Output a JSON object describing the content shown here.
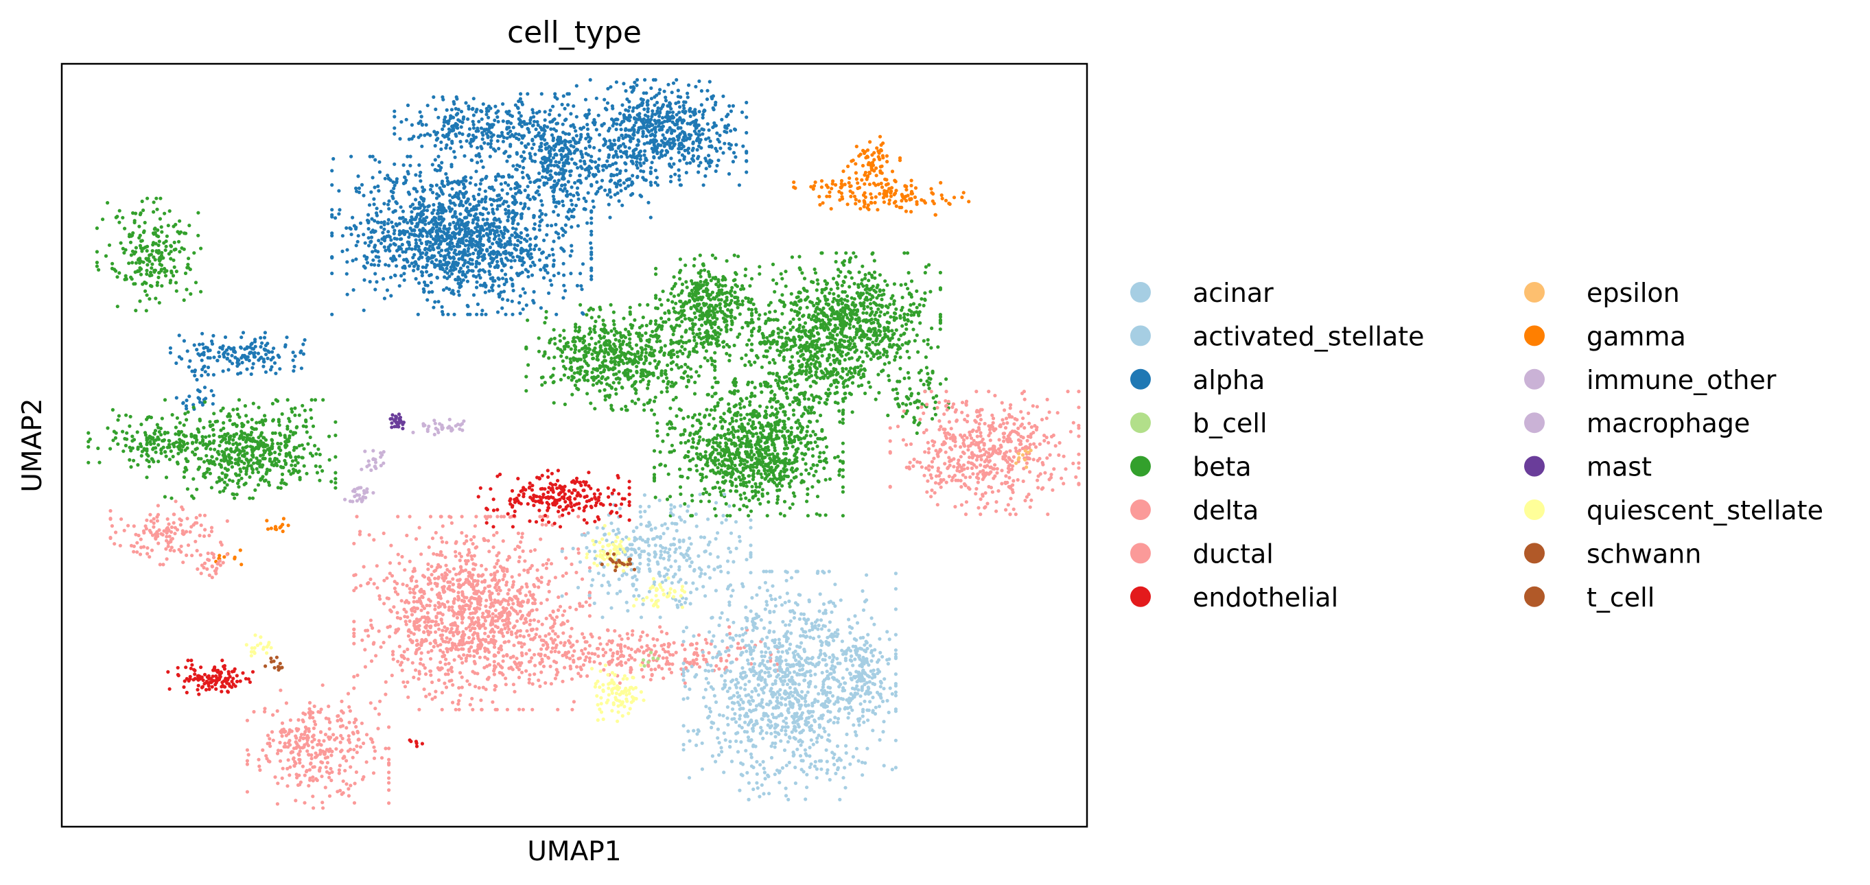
{
  "chart_data": {
    "type": "scatter",
    "title": "cell_type",
    "xlabel": "UMAP1",
    "ylabel": "UMAP2",
    "xlim": [
      0,
      100
    ],
    "ylim": [
      0,
      100
    ],
    "grid": false,
    "x_ticks": false,
    "y_ticks": false,
    "legend_position": "right, outside plot, two columns",
    "legend": [
      {
        "label": "acinar",
        "color": "#a6cee3"
      },
      {
        "label": "activated_stellate",
        "color": "#a6cee3"
      },
      {
        "label": "alpha",
        "color": "#1f78b4"
      },
      {
        "label": "b_cell",
        "color": "#b2df8a"
      },
      {
        "label": "beta",
        "color": "#33a02c"
      },
      {
        "label": "delta",
        "color": "#fb9a99"
      },
      {
        "label": "ductal",
        "color": "#fb9a99"
      },
      {
        "label": "endothelial",
        "color": "#e31a1c"
      },
      {
        "label": "epsilon",
        "color": "#fdbf6f"
      },
      {
        "label": "gamma",
        "color": "#ff7f00"
      },
      {
        "label": "immune_other",
        "color": "#cab2d6"
      },
      {
        "label": "macrophage",
        "color": "#cab2d6"
      },
      {
        "label": "mast",
        "color": "#6a3d9a"
      },
      {
        "label": "quiescent_stellate",
        "color": "#ffff99"
      },
      {
        "label": "schwann",
        "color": "#b15928"
      },
      {
        "label": "t_cell",
        "color": "#b15928"
      }
    ],
    "clusters": [
      {
        "type": "alpha",
        "cx": 39.0,
        "cy": 77.5,
        "sx": 5.5,
        "sy": 4.5,
        "n": 1400
      },
      {
        "type": "alpha",
        "cx": 58.5,
        "cy": 91.0,
        "sx": 3.6,
        "sy": 3.0,
        "n": 650
      },
      {
        "type": "alpha",
        "cx": 48.0,
        "cy": 88.0,
        "sx": 2.2,
        "sy": 3.5,
        "n": 350
      },
      {
        "type": "alpha",
        "cx": 40.5,
        "cy": 91.5,
        "sx": 3.5,
        "sy": 1.8,
        "n": 260
      },
      {
        "type": "alpha",
        "cx": 54.0,
        "cy": 84.0,
        "sx": 1.5,
        "sy": 1.8,
        "n": 60
      },
      {
        "type": "alpha",
        "cx": 17.5,
        "cy": 62.0,
        "sx": 3.0,
        "sy": 1.2,
        "n": 160
      },
      {
        "type": "alpha",
        "cx": 13.5,
        "cy": 57.0,
        "sx": 1.0,
        "sy": 2.0,
        "n": 30
      },
      {
        "type": "gamma",
        "cx": 79.0,
        "cy": 87.0,
        "sx": 1.2,
        "sy": 1.5,
        "n": 70
      },
      {
        "type": "gamma",
        "cx": 81.0,
        "cy": 82.5,
        "sx": 3.5,
        "sy": 1.0,
        "n": 120
      },
      {
        "type": "gamma",
        "cx": 76.0,
        "cy": 84.0,
        "sx": 2.0,
        "sy": 0.6,
        "n": 30
      },
      {
        "type": "gamma",
        "cx": 21.0,
        "cy": 39.0,
        "sx": 0.8,
        "sy": 0.6,
        "n": 12
      },
      {
        "type": "gamma",
        "cx": 16.5,
        "cy": 35.0,
        "sx": 0.8,
        "sy": 0.6,
        "n": 10
      },
      {
        "type": "beta",
        "cx": 8.5,
        "cy": 75.0,
        "sx": 2.2,
        "sy": 3.2,
        "n": 220
      },
      {
        "type": "beta",
        "cx": 17.5,
        "cy": 49.5,
        "sx": 4.0,
        "sy": 2.8,
        "n": 550
      },
      {
        "type": "beta",
        "cx": 9.5,
        "cy": 50.5,
        "sx": 3.0,
        "sy": 1.8,
        "n": 130
      },
      {
        "type": "beta",
        "cx": 54.5,
        "cy": 61.5,
        "sx": 4.0,
        "sy": 3.0,
        "n": 620
      },
      {
        "type": "beta",
        "cx": 63.0,
        "cy": 68.0,
        "sx": 2.2,
        "sy": 3.0,
        "n": 400
      },
      {
        "type": "beta",
        "cx": 76.5,
        "cy": 66.0,
        "sx": 4.0,
        "sy": 4.0,
        "n": 850
      },
      {
        "type": "beta",
        "cx": 67.0,
        "cy": 49.5,
        "sx": 4.0,
        "sy": 3.8,
        "n": 900
      },
      {
        "type": "beta",
        "cx": 72.5,
        "cy": 59.0,
        "sx": 3.0,
        "sy": 3.5,
        "n": 220
      },
      {
        "type": "beta",
        "cx": 83.5,
        "cy": 56.0,
        "sx": 1.3,
        "sy": 2.0,
        "n": 60
      },
      {
        "type": "beta",
        "cx": 69.0,
        "cy": 63.5,
        "sx": 1.5,
        "sy": 1.0,
        "n": 40
      },
      {
        "type": "delta",
        "cx": 90.0,
        "cy": 49.0,
        "sx": 4.0,
        "sy": 3.5,
        "n": 520
      },
      {
        "type": "ductal",
        "cx": 40.0,
        "cy": 28.0,
        "sx": 5.0,
        "sy": 5.5,
        "n": 1150
      },
      {
        "type": "ductal",
        "cx": 56.0,
        "cy": 22.5,
        "sx": 6.0,
        "sy": 1.6,
        "n": 280
      },
      {
        "type": "ductal",
        "cx": 25.0,
        "cy": 10.5,
        "sx": 3.0,
        "sy": 3.5,
        "n": 320
      },
      {
        "type": "ductal",
        "cx": 10.5,
        "cy": 38.5,
        "sx": 2.5,
        "sy": 1.8,
        "n": 130
      },
      {
        "type": "ductal",
        "cx": 15.0,
        "cy": 34.0,
        "sx": 1.0,
        "sy": 0.8,
        "n": 25
      },
      {
        "type": "acinar",
        "cx": 71.0,
        "cy": 18.5,
        "sx": 4.5,
        "sy": 6.5,
        "n": 1100
      },
      {
        "type": "acinar",
        "cx": 78.5,
        "cy": 20.5,
        "sx": 1.0,
        "sy": 3.5,
        "n": 100
      },
      {
        "type": "activated_stellate",
        "cx": 58.0,
        "cy": 35.5,
        "sx": 4.0,
        "sy": 3.5,
        "n": 300
      },
      {
        "type": "endothelial",
        "cx": 48.0,
        "cy": 43.0,
        "sx": 3.2,
        "sy": 1.6,
        "n": 220
      },
      {
        "type": "endothelial",
        "cx": 14.5,
        "cy": 19.5,
        "sx": 1.8,
        "sy": 1.0,
        "n": 120
      },
      {
        "type": "endothelial",
        "cx": 34.5,
        "cy": 11.0,
        "sx": 0.4,
        "sy": 0.4,
        "n": 6
      },
      {
        "type": "quiescent_stellate",
        "cx": 54.0,
        "cy": 17.5,
        "sx": 1.2,
        "sy": 1.6,
        "n": 90
      },
      {
        "type": "quiescent_stellate",
        "cx": 53.5,
        "cy": 36.0,
        "sx": 1.0,
        "sy": 1.5,
        "n": 60
      },
      {
        "type": "quiescent_stellate",
        "cx": 58.5,
        "cy": 30.5,
        "sx": 1.5,
        "sy": 1.0,
        "n": 40
      },
      {
        "type": "quiescent_stellate",
        "cx": 19.0,
        "cy": 24.0,
        "sx": 0.8,
        "sy": 0.8,
        "n": 20
      },
      {
        "type": "immune_other",
        "cx": 37.0,
        "cy": 52.5,
        "sx": 1.2,
        "sy": 0.5,
        "n": 35
      },
      {
        "type": "macrophage",
        "cx": 29.0,
        "cy": 43.5,
        "sx": 0.6,
        "sy": 0.7,
        "n": 25
      },
      {
        "type": "macrophage",
        "cx": 30.5,
        "cy": 48.0,
        "sx": 0.6,
        "sy": 0.8,
        "n": 20
      },
      {
        "type": "mast",
        "cx": 32.8,
        "cy": 53.0,
        "sx": 0.5,
        "sy": 0.5,
        "n": 30
      },
      {
        "type": "schwann",
        "cx": 54.5,
        "cy": 34.5,
        "sx": 0.9,
        "sy": 0.6,
        "n": 20
      },
      {
        "type": "t_cell",
        "cx": 21.0,
        "cy": 21.5,
        "sx": 0.5,
        "sy": 0.5,
        "n": 12
      },
      {
        "type": "b_cell",
        "cx": 57.0,
        "cy": 22.0,
        "sx": 0.5,
        "sy": 0.5,
        "n": 6
      },
      {
        "type": "epsilon",
        "cx": 94.0,
        "cy": 48.5,
        "sx": 0.6,
        "sy": 0.6,
        "n": 10
      }
    ]
  }
}
